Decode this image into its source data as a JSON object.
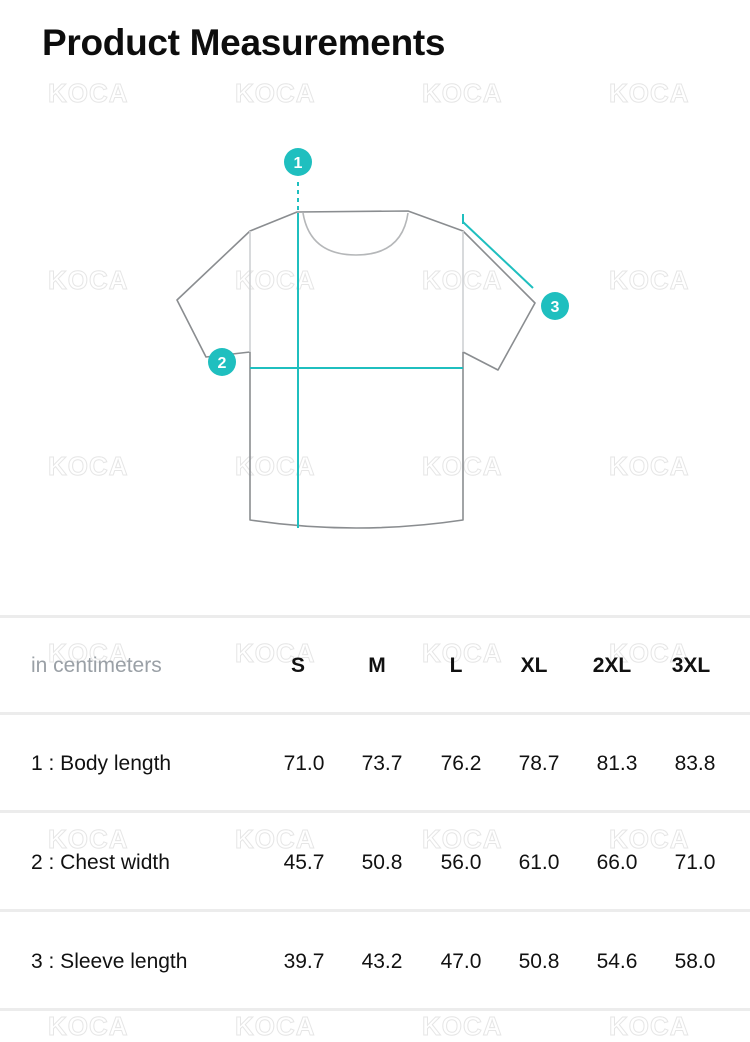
{
  "title": "Product Measurements",
  "watermark": "KOCA",
  "accent_color": "#1fbfbf",
  "diagram": {
    "markers": [
      "1",
      "2",
      "3"
    ]
  },
  "table": {
    "unit_label": "in centimeters",
    "sizes": [
      "S",
      "M",
      "L",
      "XL",
      "2XL",
      "3XL"
    ],
    "rows": [
      {
        "label": "1 : Body length",
        "values": [
          "71.0",
          "73.7",
          "76.2",
          "78.7",
          "81.3",
          "83.8"
        ]
      },
      {
        "label": "2 : Chest width",
        "values": [
          "45.7",
          "50.8",
          "56.0",
          "61.0",
          "66.0",
          "71.0"
        ]
      },
      {
        "label": "3 : Sleeve length",
        "values": [
          "39.7",
          "43.2",
          "47.0",
          "50.8",
          "54.6",
          "58.0"
        ]
      }
    ]
  }
}
